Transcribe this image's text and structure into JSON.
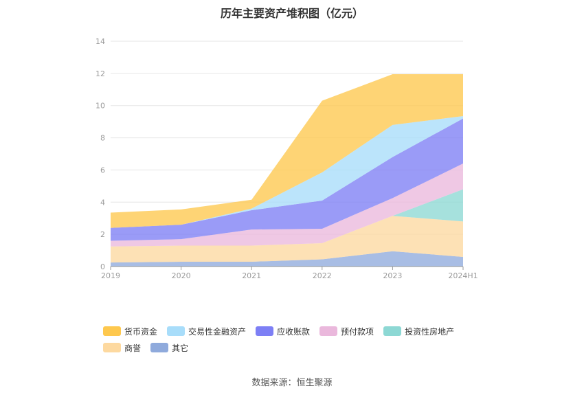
{
  "chart_data": {
    "type": "area",
    "stacked": true,
    "title": "历年主要资产堆积图（亿元）",
    "categories": [
      "2019",
      "2020",
      "2021",
      "2022",
      "2023",
      "2024H1"
    ],
    "ylim": [
      0,
      14
    ],
    "yticks": [
      0,
      2,
      4,
      6,
      8,
      10,
      12,
      14
    ],
    "grid": true,
    "legend_position": "bottom",
    "series": [
      {
        "name": "其它",
        "color": "#8faadc",
        "values": [
          0.25,
          0.3,
          0.3,
          0.45,
          0.95,
          0.6
        ]
      },
      {
        "name": "商誉",
        "color": "#fdd9a0",
        "values": [
          1.0,
          1.0,
          1.0,
          1.0,
          2.2,
          2.2
        ]
      },
      {
        "name": "投资性房地产",
        "color": "#8dd8d4",
        "values": [
          0,
          0,
          0,
          0,
          0,
          2.0
        ]
      },
      {
        "name": "预付款项",
        "color": "#eab8dc",
        "values": [
          0.35,
          0.4,
          1.0,
          0.9,
          1.1,
          1.6
        ]
      },
      {
        "name": "应收账款",
        "color": "#7d7ff5",
        "values": [
          0.8,
          0.9,
          1.2,
          1.75,
          2.55,
          2.8
        ]
      },
      {
        "name": "交易性金融资产",
        "color": "#a8ddfa",
        "values": [
          0,
          0,
          0.1,
          1.75,
          2.0,
          0.15
        ]
      },
      {
        "name": "货币资金",
        "color": "#fec84e",
        "values": [
          0.95,
          0.95,
          0.55,
          4.45,
          3.15,
          2.6
        ]
      }
    ]
  },
  "legend_order": [
    "货币资金",
    "交易性金融资产",
    "应收账款",
    "预付款项",
    "投资性房地产",
    "商誉",
    "其它"
  ],
  "source": "数据来源：恒生聚源"
}
